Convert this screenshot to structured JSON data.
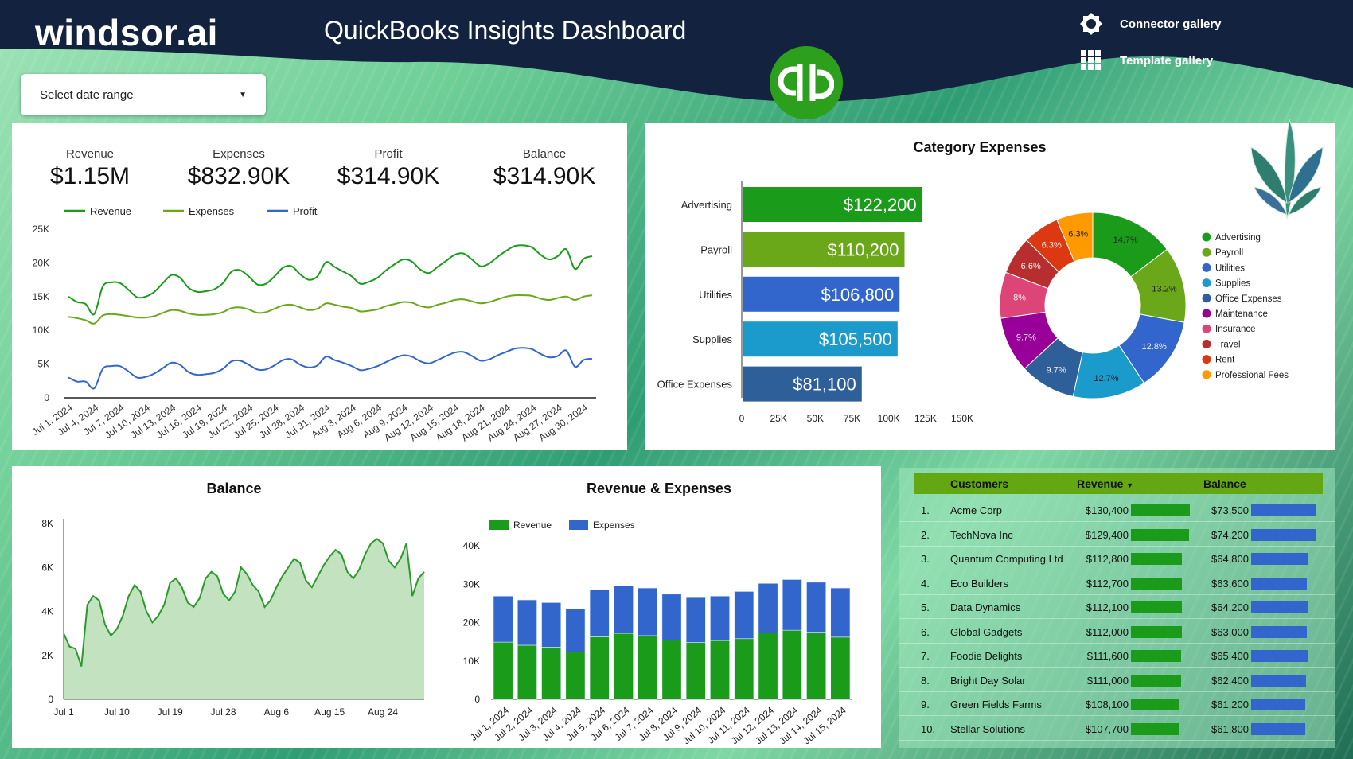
{
  "header": {
    "logo": "windsor.ai",
    "title": "QuickBooks Insights Dashboard",
    "links": [
      {
        "label": "Connector gallery",
        "icon": "puzzle-gear-icon"
      },
      {
        "label": "Template gallery",
        "icon": "grid-icon"
      }
    ],
    "date_select": "Select date range",
    "brand_icon": "quickbooks-logo"
  },
  "colors": {
    "header_bg": "#13233f",
    "revenue": "#1a9c1a",
    "expenses": "#6aa81a",
    "profit": "#3366cc",
    "bar_expenses": "#3366cc",
    "table_header": "#63a812"
  },
  "kpis": [
    {
      "label": "Revenue",
      "value": "$1.15M"
    },
    {
      "label": "Expenses",
      "value": "$832.90K"
    },
    {
      "label": "Profit",
      "value": "$314.90K"
    },
    {
      "label": "Balance",
      "value": "$314.90K"
    }
  ],
  "chart_data": [
    {
      "type": "line",
      "legend_position": "top-left",
      "ylim": [
        0,
        25000
      ],
      "y_tick_labels": [
        "0",
        "5K",
        "10K",
        "15K",
        "20K",
        "25K"
      ],
      "x": [
        "Jul 1, 2024",
        "Jul 2, 2024",
        "Jul 3, 2024",
        "Jul 4, 2024",
        "Jul 5, 2024",
        "Jul 6, 2024",
        "Jul 7, 2024",
        "Jul 8, 2024",
        "Jul 9, 2024",
        "Jul 10, 2024",
        "Jul 11, 2024",
        "Jul 12, 2024",
        "Jul 13, 2024",
        "Jul 14, 2024",
        "Jul 15, 2024",
        "Jul 16, 2024",
        "Jul 17, 2024",
        "Jul 18, 2024",
        "Jul 19, 2024",
        "Jul 20, 2024",
        "Jul 21, 2024",
        "Jul 22, 2024",
        "Jul 23, 2024",
        "Jul 24, 2024",
        "Jul 25, 2024",
        "Jul 26, 2024",
        "Jul 27, 2024",
        "Jul 28, 2024",
        "Jul 29, 2024",
        "Jul 30, 2024",
        "Jul 31, 2024",
        "Aug 1, 2024",
        "Aug 2, 2024",
        "Aug 3, 2024",
        "Aug 4, 2024",
        "Aug 5, 2024",
        "Aug 6, 2024",
        "Aug 7, 2024",
        "Aug 8, 2024",
        "Aug 9, 2024",
        "Aug 10, 2024",
        "Aug 11, 2024",
        "Aug 12, 2024",
        "Aug 13, 2024",
        "Aug 14, 2024",
        "Aug 15, 2024",
        "Aug 16, 2024",
        "Aug 17, 2024",
        "Aug 18, 2024",
        "Aug 19, 2024",
        "Aug 20, 2024",
        "Aug 21, 2024",
        "Aug 22, 2024",
        "Aug 23, 2024",
        "Aug 24, 2024",
        "Aug 25, 2024",
        "Aug 26, 2024",
        "Aug 27, 2024",
        "Aug 28, 2024",
        "Aug 29, 2024",
        "Aug 30, 2024",
        "Aug 31, 2024"
      ],
      "x_tick_labels": [
        "Jul 1, 2024",
        "Jul 4, 2024",
        "Jul 7, 2024",
        "Jul 10, 2024",
        "Jul 13, 2024",
        "Jul 16, 2024",
        "Jul 19, 2024",
        "Jul 22, 2024",
        "Jul 25, 2024",
        "Jul 28, 2024",
        "Jul 31, 2024",
        "Aug 3, 2024",
        "Aug 6, 2024",
        "Aug 9, 2024",
        "Aug 12, 2024",
        "Aug 15, 2024",
        "Aug 18, 2024",
        "Aug 21, 2024",
        "Aug 24, 2024",
        "Aug 27, 2024",
        "Aug 30, 2024"
      ],
      "series": [
        {
          "name": "Revenue",
          "color": "#1a9c1a",
          "values": [
            15000,
            14200,
            13900,
            12400,
            16500,
            17100,
            17000,
            16000,
            14900,
            15000,
            15700,
            17000,
            18200,
            17800,
            16300,
            15700,
            15800,
            16100,
            17000,
            18700,
            18900,
            18000,
            16800,
            16900,
            18000,
            19300,
            19500,
            18300,
            17500,
            18000,
            20100,
            19400,
            18700,
            18000,
            16900,
            17200,
            17800,
            18900,
            19800,
            20500,
            20200,
            19000,
            18500,
            19400,
            20300,
            21200,
            21400,
            20500,
            19500,
            19900,
            20900,
            21800,
            22500,
            22600,
            22300,
            21200,
            20500,
            21000,
            22000,
            19100,
            20600,
            21000
          ]
        },
        {
          "name": "Expenses",
          "color": "#6aa81a",
          "values": [
            12000,
            11800,
            11500,
            11000,
            12200,
            12400,
            12300,
            12100,
            11900,
            11900,
            12100,
            12600,
            13000,
            12900,
            12500,
            12300,
            12300,
            12400,
            12700,
            13300,
            13400,
            13100,
            12600,
            12700,
            13200,
            13700,
            13800,
            13400,
            13000,
            13200,
            14000,
            13800,
            13500,
            13300,
            12800,
            12900,
            13100,
            13600,
            13900,
            14200,
            14100,
            13600,
            13400,
            13800,
            14100,
            14500,
            14600,
            14300,
            14000,
            14200,
            14600,
            15000,
            15200,
            15200,
            15100,
            14700,
            14500,
            14800,
            15000,
            14500,
            15000,
            15200
          ]
        },
        {
          "name": "Profit",
          "color": "#3366cc",
          "values": [
            3000,
            2400,
            2400,
            1400,
            4300,
            4700,
            4700,
            3900,
            3000,
            3100,
            3600,
            4400,
            5200,
            4900,
            3800,
            3400,
            3500,
            3700,
            4300,
            5400,
            5500,
            4900,
            4200,
            4200,
            4800,
            5600,
            5700,
            4900,
            4500,
            4800,
            6100,
            5600,
            5200,
            4700,
            4100,
            4300,
            4700,
            5300,
            5900,
            6300,
            6100,
            5400,
            5100,
            5600,
            6200,
            6700,
            6800,
            6200,
            5500,
            5700,
            6300,
            6800,
            7300,
            7400,
            7200,
            6500,
            6000,
            6200,
            7000,
            4600,
            5600,
            5800
          ]
        }
      ]
    },
    {
      "type": "bar",
      "orientation": "horizontal",
      "title": "Category Expenses",
      "categories": [
        "Advertising",
        "Payroll",
        "Utilities",
        "Supplies",
        "Office Expenses"
      ],
      "values": [
        122200,
        110200,
        106800,
        105500,
        81100
      ],
      "data_labels": [
        "$122,200",
        "$110,200",
        "$106,800",
        "$105,500",
        "$81,100"
      ],
      "colors": [
        "#1a9c1a",
        "#6aa81a",
        "#3366cc",
        "#1a9bcc",
        "#2f5f99"
      ],
      "xlim": [
        0,
        150000
      ],
      "x_tick_labels": [
        "0",
        "25K",
        "50K",
        "75K",
        "100K",
        "125K",
        "150K"
      ]
    },
    {
      "type": "pie",
      "donut": true,
      "legend_position": "right",
      "categories": [
        "Advertising",
        "Payroll",
        "Utilities",
        "Supplies",
        "Office Expenses",
        "Maintenance",
        "Insurance",
        "Travel",
        "Rent",
        "Professional Fees"
      ],
      "values": [
        14.7,
        13.2,
        12.8,
        12.7,
        9.7,
        9.7,
        8,
        6.6,
        6.3,
        6.3
      ],
      "data_labels": [
        "14.7%",
        "13.2%",
        "12.8%",
        "12.7%",
        "9.7%",
        "9.7%",
        "8%",
        "6.6%",
        "6.3%",
        "6.3%"
      ],
      "colors": [
        "#1a9c1a",
        "#6aa81a",
        "#3366cc",
        "#1a9bcc",
        "#2f5f99",
        "#990099",
        "#dd4477",
        "#b82e2e",
        "#dc3912",
        "#ff9900"
      ]
    },
    {
      "type": "area",
      "title": "Balance",
      "color": "#2a9a2a",
      "fill": "#c3e3c0",
      "ylim": [
        0,
        8000
      ],
      "y_tick_labels": [
        "0",
        "2K",
        "4K",
        "6K",
        "8K"
      ],
      "x": [
        "Jul 1",
        "Jul 2",
        "Jul 3",
        "Jul 4",
        "Jul 5",
        "Jul 6",
        "Jul 7",
        "Jul 8",
        "Jul 9",
        "Jul 10",
        "Jul 11",
        "Jul 12",
        "Jul 13",
        "Jul 14",
        "Jul 15",
        "Jul 16",
        "Jul 17",
        "Jul 18",
        "Jul 19",
        "Jul 20",
        "Jul 21",
        "Jul 22",
        "Jul 23",
        "Jul 24",
        "Jul 25",
        "Jul 26",
        "Jul 27",
        "Jul 28",
        "Jul 29",
        "Jul 30",
        "Jul 31",
        "Aug 1",
        "Aug 2",
        "Aug 3",
        "Aug 4",
        "Aug 5",
        "Aug 6",
        "Aug 7",
        "Aug 8",
        "Aug 9",
        "Aug 10",
        "Aug 11",
        "Aug 12",
        "Aug 13",
        "Aug 14",
        "Aug 15",
        "Aug 16",
        "Aug 17",
        "Aug 18",
        "Aug 19",
        "Aug 20",
        "Aug 21",
        "Aug 22",
        "Aug 23",
        "Aug 24",
        "Aug 25",
        "Aug 26",
        "Aug 27",
        "Aug 28",
        "Aug 29",
        "Aug 30",
        "Aug 31"
      ],
      "x_tick_labels": [
        "Jul 1",
        "Jul 10",
        "Jul 19",
        "Jul 28",
        "Aug 6",
        "Aug 15",
        "Aug 24"
      ],
      "values": [
        3000,
        2400,
        2300,
        1500,
        4300,
        4700,
        4500,
        3400,
        2900,
        3200,
        3800,
        4700,
        5200,
        4900,
        4000,
        3500,
        3800,
        4300,
        5300,
        5500,
        5100,
        4400,
        4200,
        4600,
        5500,
        5800,
        5600,
        4800,
        4500,
        4900,
        6000,
        5700,
        5200,
        4900,
        4200,
        4500,
        5100,
        5600,
        6000,
        6400,
        6200,
        5400,
        5100,
        5600,
        6100,
        6500,
        6800,
        6600,
        5800,
        5500,
        5900,
        6600,
        7100,
        7300,
        7100,
        6300,
        6000,
        6400,
        7100,
        4700,
        5500,
        5800
      ]
    },
    {
      "type": "bar",
      "stacked": true,
      "title": "Revenue & Expenses",
      "legend_position": "top-left",
      "ylim": [
        0,
        40000
      ],
      "y_tick_labels": [
        "0",
        "10K",
        "20K",
        "30K",
        "40K"
      ],
      "categories": [
        "Jul 1, 2024",
        "Jul 2, 2024",
        "Jul 3, 2024",
        "Jul 4, 2024",
        "Jul 5, 2024",
        "Jul 6, 2024",
        "Jul 7, 2024",
        "Jul 8, 2024",
        "Jul 9, 2024",
        "Jul 10, 2024",
        "Jul 11, 2024",
        "Jul 12, 2024",
        "Jul 13, 2024",
        "Jul 14, 2024",
        "Jul 15, 2024"
      ],
      "series": [
        {
          "name": "Revenue",
          "color": "#1a9c1a",
          "values": [
            14900,
            14100,
            13600,
            12300,
            16300,
            17200,
            16600,
            15400,
            14800,
            15300,
            15800,
            17300,
            18000,
            17500,
            16200
          ]
        },
        {
          "name": "Expenses",
          "color": "#3366cc",
          "values": [
            12000,
            11800,
            11600,
            11200,
            12200,
            12300,
            12400,
            12000,
            11700,
            11600,
            12300,
            12900,
            13200,
            13000,
            12800
          ]
        }
      ]
    }
  ],
  "table": {
    "headers": [
      "Customers",
      "Revenue",
      "Balance"
    ],
    "sort_icon": "sort-desc-icon",
    "bar_colors": {
      "revenue": "#1a9c1a",
      "balance": "#3366cc"
    },
    "rows": [
      {
        "rank": "1.",
        "name": "Acme Corp",
        "revenue": "$130,400",
        "rev": 130400,
        "balance": "$73,500",
        "bal": 73500
      },
      {
        "rank": "2.",
        "name": "TechNova Inc",
        "revenue": "$129,400",
        "rev": 129400,
        "balance": "$74,200",
        "bal": 74200
      },
      {
        "rank": "3.",
        "name": "Quantum Computing Ltd",
        "revenue": "$112,800",
        "rev": 112800,
        "balance": "$64,800",
        "bal": 64800
      },
      {
        "rank": "4.",
        "name": "Eco Builders",
        "revenue": "$112,700",
        "rev": 112700,
        "balance": "$63,600",
        "bal": 63600
      },
      {
        "rank": "5.",
        "name": "Data Dynamics",
        "revenue": "$112,100",
        "rev": 112100,
        "balance": "$64,200",
        "bal": 64200
      },
      {
        "rank": "6.",
        "name": "Global Gadgets",
        "revenue": "$112,000",
        "rev": 112000,
        "balance": "$63,000",
        "bal": 63000
      },
      {
        "rank": "7.",
        "name": "Foodie Delights",
        "revenue": "$111,600",
        "rev": 111600,
        "balance": "$65,400",
        "bal": 65400
      },
      {
        "rank": "8.",
        "name": "Bright Day Solar",
        "revenue": "$111,000",
        "rev": 111000,
        "balance": "$62,400",
        "bal": 62400
      },
      {
        "rank": "9.",
        "name": "Green Fields Farms",
        "revenue": "$108,100",
        "rev": 108100,
        "balance": "$61,200",
        "bal": 61200
      },
      {
        "rank": "10.",
        "name": "Stellar Solutions",
        "revenue": "$107,700",
        "rev": 107700,
        "balance": "$61,800",
        "bal": 61800
      }
    ]
  }
}
